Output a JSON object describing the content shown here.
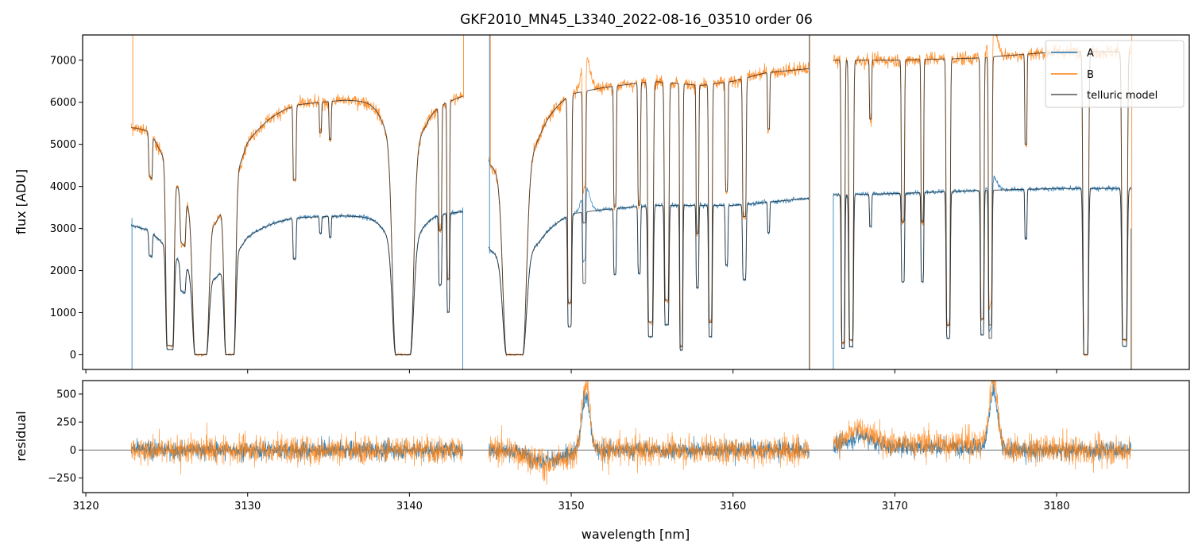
{
  "chart_data": [
    {
      "panel": "spectrum",
      "type": "line",
      "title": "GKF2010_MN45_L3340_2022-08-16_03510  order 06",
      "xlabel": "",
      "ylabel": "flux [ADU]",
      "xlim": [
        3119.8,
        3188.2
      ],
      "ylim": [
        -350,
        7600
      ],
      "yticks": [
        0,
        1000,
        2000,
        3000,
        4000,
        5000,
        6000,
        7000
      ],
      "ytick_labels": [
        "0",
        "1000",
        "2000",
        "3000",
        "4000",
        "5000",
        "6000",
        "7000"
      ],
      "xticks": [
        3120,
        3130,
        3140,
        3150,
        3160,
        3170,
        3180
      ],
      "grid": false,
      "legend": {
        "placement": "top-right",
        "entries": [
          "A",
          "B",
          "telluric model"
        ]
      },
      "segments": [
        [
          3122.8,
          3143.3
        ],
        [
          3144.9,
          3164.7
        ],
        [
          3166.2,
          3184.6
        ]
      ],
      "continuum": {
        "A": [
          [
            3122.8,
            3100
          ],
          [
            3124,
            3050
          ],
          [
            3126,
            2600
          ],
          [
            3128,
            2400
          ],
          [
            3130,
            3100
          ],
          [
            3133,
            3260
          ],
          [
            3136,
            3300
          ],
          [
            3139,
            3250
          ],
          [
            3141,
            3300
          ],
          [
            3143.3,
            3400
          ],
          [
            3145,
            2700
          ],
          [
            3148,
            2900
          ],
          [
            3150,
            3350
          ],
          [
            3152,
            3450
          ],
          [
            3155,
            3550
          ],
          [
            3158,
            3550
          ],
          [
            3160,
            3550
          ],
          [
            3162,
            3620
          ],
          [
            3164.7,
            3720
          ],
          [
            3166.2,
            3800
          ],
          [
            3170,
            3830
          ],
          [
            3175,
            3900
          ],
          [
            3180,
            3950
          ],
          [
            3184.6,
            3950
          ]
        ],
        "B": [
          [
            3122.8,
            5450
          ],
          [
            3124,
            5500
          ],
          [
            3126,
            4550
          ],
          [
            3128,
            4100
          ],
          [
            3130,
            5600
          ],
          [
            3133,
            5950
          ],
          [
            3136,
            6050
          ],
          [
            3139,
            6000
          ],
          [
            3141,
            5800
          ],
          [
            3143.3,
            6150
          ],
          [
            3145,
            4900
          ],
          [
            3148,
            5600
          ],
          [
            3150,
            6200
          ],
          [
            3152,
            6350
          ],
          [
            3155,
            6500
          ],
          [
            3158,
            6400
          ],
          [
            3160,
            6500
          ],
          [
            3162,
            6700
          ],
          [
            3164.7,
            6800
          ],
          [
            3166.2,
            7000
          ],
          [
            3170,
            7000
          ],
          [
            3175,
            7050
          ],
          [
            3180,
            7200
          ],
          [
            3184.6,
            7200
          ]
        ]
      },
      "absorption_lines": [
        {
          "center": 3124.0,
          "width": 0.08,
          "depth": 0.2
        },
        {
          "center": 3125.2,
          "width": 0.18,
          "depth": 0.95
        },
        {
          "center": 3127.1,
          "width": 0.35,
          "depth": 1.0
        },
        {
          "center": 3128.9,
          "width": 0.25,
          "depth": 1.0
        },
        {
          "center": 3126.0,
          "width": 0.12,
          "depth": 0.3
        },
        {
          "center": 3132.9,
          "width": 0.07,
          "depth": 0.3
        },
        {
          "center": 3134.5,
          "width": 0.05,
          "depth": 0.12
        },
        {
          "center": 3135.1,
          "width": 0.05,
          "depth": 0.15
        },
        {
          "center": 3139.6,
          "width": 0.45,
          "depth": 1.0
        },
        {
          "center": 3141.9,
          "width": 0.07,
          "depth": 0.5
        },
        {
          "center": 3142.4,
          "width": 0.06,
          "depth": 0.7
        },
        {
          "center": 3146.5,
          "width": 0.5,
          "depth": 1.0
        },
        {
          "center": 3149.9,
          "width": 0.09,
          "depth": 0.8
        },
        {
          "center": 3150.8,
          "width": 0.07,
          "depth": 0.5
        },
        {
          "center": 3152.7,
          "width": 0.06,
          "depth": 0.45
        },
        {
          "center": 3154.2,
          "width": 0.06,
          "depth": 0.45
        },
        {
          "center": 3154.9,
          "width": 0.12,
          "depth": 0.88
        },
        {
          "center": 3155.9,
          "width": 0.1,
          "depth": 0.8
        },
        {
          "center": 3156.8,
          "width": 0.07,
          "depth": 0.97
        },
        {
          "center": 3157.8,
          "width": 0.06,
          "depth": 0.55
        },
        {
          "center": 3158.6,
          "width": 0.08,
          "depth": 0.88
        },
        {
          "center": 3159.6,
          "width": 0.06,
          "depth": 0.4
        },
        {
          "center": 3160.7,
          "width": 0.08,
          "depth": 0.5
        },
        {
          "center": 3162.2,
          "width": 0.05,
          "depth": 0.2
        },
        {
          "center": 3166.8,
          "width": 0.08,
          "depth": 0.96
        },
        {
          "center": 3167.3,
          "width": 0.1,
          "depth": 0.95
        },
        {
          "center": 3168.5,
          "width": 0.05,
          "depth": 0.2
        },
        {
          "center": 3170.5,
          "width": 0.07,
          "depth": 0.55
        },
        {
          "center": 3171.7,
          "width": 0.06,
          "depth": 0.55
        },
        {
          "center": 3173.3,
          "width": 0.09,
          "depth": 0.9
        },
        {
          "center": 3175.4,
          "width": 0.08,
          "depth": 0.88
        },
        {
          "center": 3175.9,
          "width": 0.08,
          "depth": 0.9
        },
        {
          "center": 3178.1,
          "width": 0.05,
          "depth": 0.3
        },
        {
          "center": 3181.8,
          "width": 0.12,
          "depth": 1.0
        },
        {
          "center": 3184.2,
          "width": 0.12,
          "depth": 0.95
        }
      ],
      "series": [
        {
          "name": "A",
          "color": "#1f77b4"
        },
        {
          "name": "B",
          "color": "#ff7f0e"
        },
        {
          "name": "telluric model",
          "color": "#555555"
        }
      ]
    },
    {
      "panel": "residual",
      "type": "line",
      "xlabel": "wavelength [nm]",
      "ylabel": "residual",
      "xlim": [
        3119.8,
        3188.2
      ],
      "ylim": [
        -380,
        620
      ],
      "yticks": [
        -250,
        0,
        250,
        500
      ],
      "ytick_labels": [
        "−250",
        "0",
        "250",
        "500"
      ],
      "xticks": [
        3120,
        3130,
        3140,
        3150,
        3160,
        3170,
        3180
      ],
      "xtick_labels": [
        "3120",
        "3130",
        "3140",
        "3150",
        "3160",
        "3170",
        "3180"
      ],
      "zero_line": 0,
      "noise_sigma": {
        "A": 70,
        "B": 110
      },
      "features": [
        {
          "center": 3150.9,
          "width": 0.35,
          "height": 600
        },
        {
          "center": 3176.1,
          "width": 0.35,
          "height": 600
        },
        {
          "center": 3148.5,
          "width": 1.5,
          "height": -120
        },
        {
          "center": 3167.9,
          "width": 1.0,
          "height": 120
        }
      ],
      "series": [
        {
          "name": "A",
          "color": "#1f77b4"
        },
        {
          "name": "B",
          "color": "#ff7f0e"
        }
      ]
    }
  ]
}
